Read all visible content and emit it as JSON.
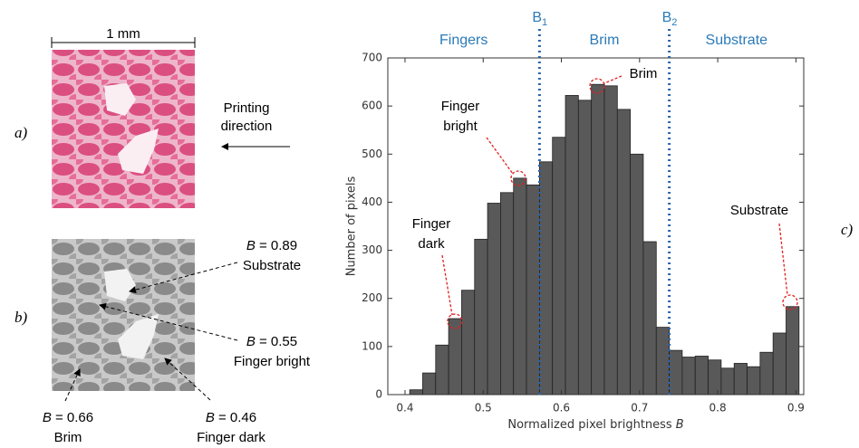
{
  "chart_data": {
    "type": "histogram",
    "bins": [
      0.406,
      0.4226,
      0.4392,
      0.4558,
      0.4724,
      0.489,
      0.5056,
      0.5222,
      0.5388,
      0.5554,
      0.572,
      0.5886,
      0.6052,
      0.6218,
      0.6384,
      0.655,
      0.6716,
      0.6882,
      0.7048,
      0.7214,
      0.738,
      0.7546,
      0.7712,
      0.7878,
      0.8044,
      0.821,
      0.8376,
      0.8542,
      0.8708,
      0.8874,
      0.904
    ],
    "values": [
      10,
      45,
      103,
      158,
      217,
      323,
      398,
      420,
      450,
      436,
      484,
      535,
      622,
      612,
      645,
      642,
      593,
      500,
      318,
      140,
      92,
      78,
      80,
      72,
      55,
      65,
      58,
      88,
      128,
      183
    ],
    "color": "#595959",
    "xlim": [
      0.378,
      0.91
    ],
    "ylim": [
      0,
      700
    ],
    "xticks": [
      0.4,
      0.5,
      0.6,
      0.7,
      0.8,
      0.9
    ],
    "yticks": [
      0,
      100,
      200,
      300,
      400,
      500,
      600,
      700
    ],
    "xlabel": "Normalized pixel brightness",
    "xlabel_symbol": "B",
    "ylabel": "Number of pixels",
    "boundaries": [
      {
        "label": "B",
        "subscript": "1",
        "value": 0.572
      },
      {
        "label": "B",
        "subscript": "2",
        "value": 0.738
      }
    ],
    "regions": [
      "Fingers",
      "Brim",
      "Substrate"
    ],
    "annotations": [
      {
        "lines": [
          "Brim"
        ]
      },
      {
        "lines": [
          "Finger",
          "bright"
        ]
      },
      {
        "lines": [
          "Finger",
          "dark"
        ]
      },
      {
        "lines": [
          "Substrate"
        ]
      }
    ],
    "panel_label": "c)"
  },
  "panel_a": {
    "label": "a)",
    "scale": "1 mm",
    "direction": [
      "Printing",
      "direction"
    ]
  },
  "panel_b": {
    "label": "b)",
    "annotations": [
      {
        "symbol": "B",
        "value": "= 0.89",
        "name": "Substrate"
      },
      {
        "symbol": "B",
        "value": "= 0.55",
        "name": "Finger bright"
      },
      {
        "symbol": "B",
        "value": "= 0.66",
        "name": "Brim"
      },
      {
        "symbol": "B",
        "value": "= 0.46",
        "name": "Finger dark"
      }
    ]
  }
}
